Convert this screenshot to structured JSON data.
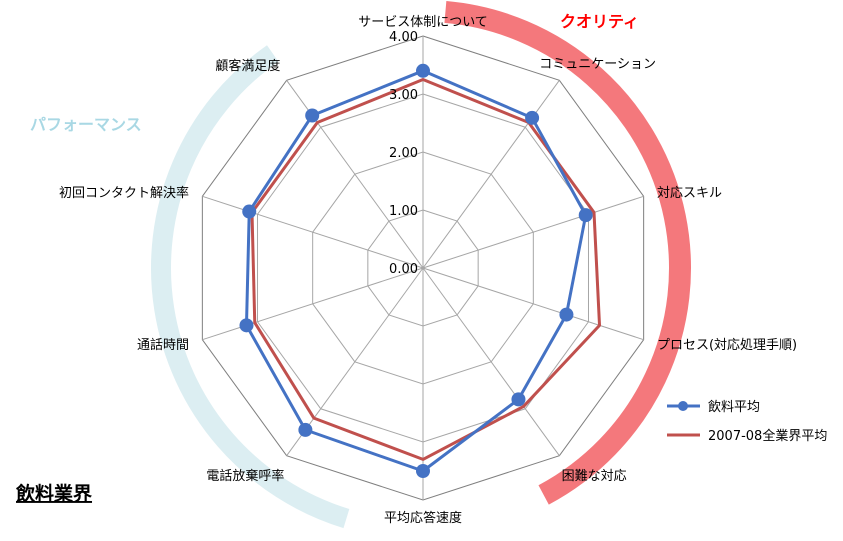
{
  "chart_data": {
    "type": "radar",
    "industry_label": "飲料業界",
    "groups": [
      {
        "label": "クオリティ",
        "color": "#FF0000",
        "band_color": "#F4787C"
      },
      {
        "label": "パフォーマンス",
        "color": "#A9D8E4",
        "band_color": "#DCEEF2"
      }
    ],
    "categories": [
      "サービス体制について",
      "コミュニケーション",
      "対応スキル",
      "プロセス(対応処理手順)",
      "困難な対応",
      "平均応答速度",
      "電話放棄呼率",
      "通話時間",
      "初回コンタクト解決率",
      "顧客満足度"
    ],
    "rlim": [
      0,
      4
    ],
    "ticks": [
      "0.00",
      "1.00",
      "2.00",
      "3.00",
      "4.00"
    ],
    "series": [
      {
        "name": "飲料平均",
        "color": "#4472C4",
        "marker": "circle",
        "values": [
          3.4,
          3.2,
          2.95,
          2.6,
          2.8,
          3.5,
          3.45,
          3.2,
          3.15,
          3.25
        ]
      },
      {
        "name": "2007-08全業界平均",
        "color": "#C0504D",
        "marker": "none",
        "values": [
          3.25,
          3.1,
          3.1,
          3.2,
          2.95,
          3.3,
          3.2,
          3.05,
          3.1,
          3.1
        ]
      }
    ],
    "legend_position": "right",
    "grid": true
  }
}
